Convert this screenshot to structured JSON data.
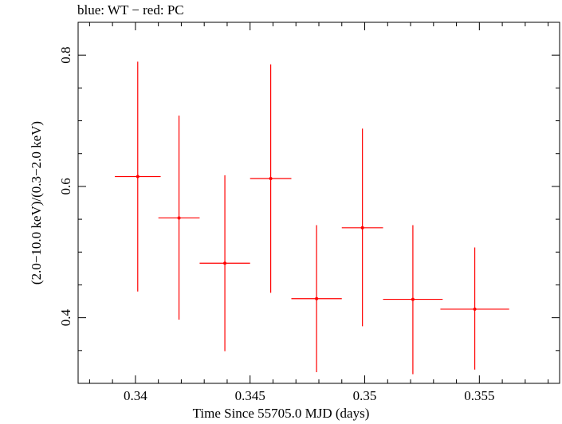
{
  "chart_data": {
    "type": "scatter",
    "title": "blue: WT − red: PC",
    "xlabel": "Time Since 55705.0 MJD (days)",
    "ylabel": "(2.0−10.0 keV)/(0.3−2.0 keV)",
    "xlim": [
      0.3375,
      0.3585
    ],
    "ylim": [
      0.3,
      0.85
    ],
    "xticks": [
      0.34,
      0.345,
      0.35,
      0.355
    ],
    "xtick_labels": [
      "0.34",
      "0.345",
      "0.35",
      "0.355"
    ],
    "yticks": [
      0.4,
      0.6,
      0.8
    ],
    "ytick_labels": [
      "0.4",
      "0.6",
      "0.8"
    ],
    "grid": false,
    "series": [
      {
        "color": "#ff0000",
        "points": [
          {
            "x": 0.3401,
            "y": 0.615,
            "xlo": 0.3391,
            "xhi": 0.3411,
            "ylo": 0.44,
            "yhi": 0.79
          },
          {
            "x": 0.3419,
            "y": 0.552,
            "xlo": 0.341,
            "xhi": 0.3428,
            "ylo": 0.397,
            "yhi": 0.708
          },
          {
            "x": 0.3439,
            "y": 0.483,
            "xlo": 0.3428,
            "xhi": 0.345,
            "ylo": 0.349,
            "yhi": 0.617
          },
          {
            "x": 0.3459,
            "y": 0.612,
            "xlo": 0.345,
            "xhi": 0.3468,
            "ylo": 0.438,
            "yhi": 0.786
          },
          {
            "x": 0.3479,
            "y": 0.429,
            "xlo": 0.3468,
            "xhi": 0.349,
            "ylo": 0.317,
            "yhi": 0.541
          },
          {
            "x": 0.3499,
            "y": 0.537,
            "xlo": 0.349,
            "xhi": 0.3508,
            "ylo": 0.387,
            "yhi": 0.688
          },
          {
            "x": 0.3521,
            "y": 0.428,
            "xlo": 0.3508,
            "xhi": 0.3534,
            "ylo": 0.314,
            "yhi": 0.541
          },
          {
            "x": 0.3548,
            "y": 0.413,
            "xlo": 0.3533,
            "xhi": 0.3563,
            "ylo": 0.321,
            "yhi": 0.507
          }
        ]
      }
    ]
  }
}
